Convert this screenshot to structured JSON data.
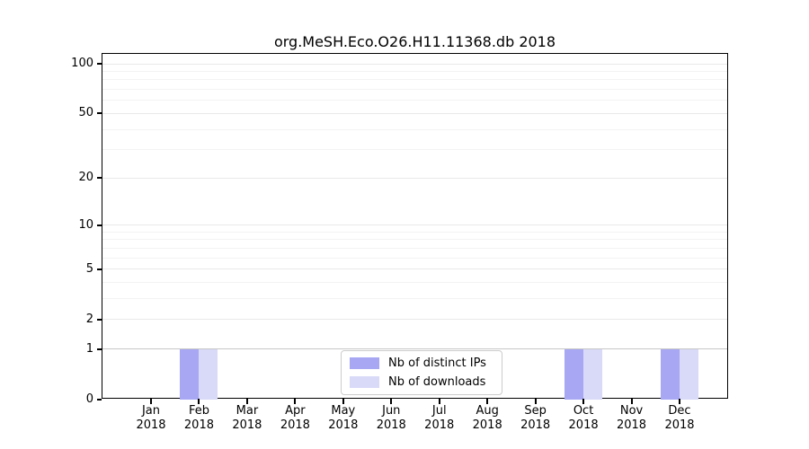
{
  "chart_data": {
    "type": "bar",
    "title": "org.MeSH.Eco.O26.H11.11368.db 2018",
    "year": "2018",
    "categories": [
      "Jan",
      "Feb",
      "Mar",
      "Apr",
      "May",
      "Jun",
      "Jul",
      "Aug",
      "Sep",
      "Oct",
      "Nov",
      "Dec"
    ],
    "series": [
      {
        "name": "Nb of distinct IPs",
        "color": "#a7a7f4",
        "values": [
          0,
          1,
          0,
          0,
          0,
          0,
          0,
          0,
          0,
          1,
          0,
          1
        ]
      },
      {
        "name": "Nb of downloads",
        "color": "#d9d9f8",
        "values": [
          0,
          1,
          0,
          0,
          0,
          0,
          0,
          0,
          0,
          1,
          0,
          1
        ]
      }
    ],
    "xlabel": "",
    "ylabel": "",
    "yscale": "log1p",
    "ylim": [
      0,
      115
    ],
    "y_tick_labels": [
      100,
      50,
      20,
      10,
      5,
      2,
      1,
      0
    ],
    "y_major_gridlines": [
      2,
      5,
      10,
      20,
      50,
      100
    ],
    "y_minor_gridlines": [
      3,
      4,
      6,
      7,
      8,
      9,
      30,
      40,
      60,
      70,
      80,
      90
    ],
    "y_emphasis_line": 1,
    "grid": true,
    "legend_position": "lower center"
  }
}
